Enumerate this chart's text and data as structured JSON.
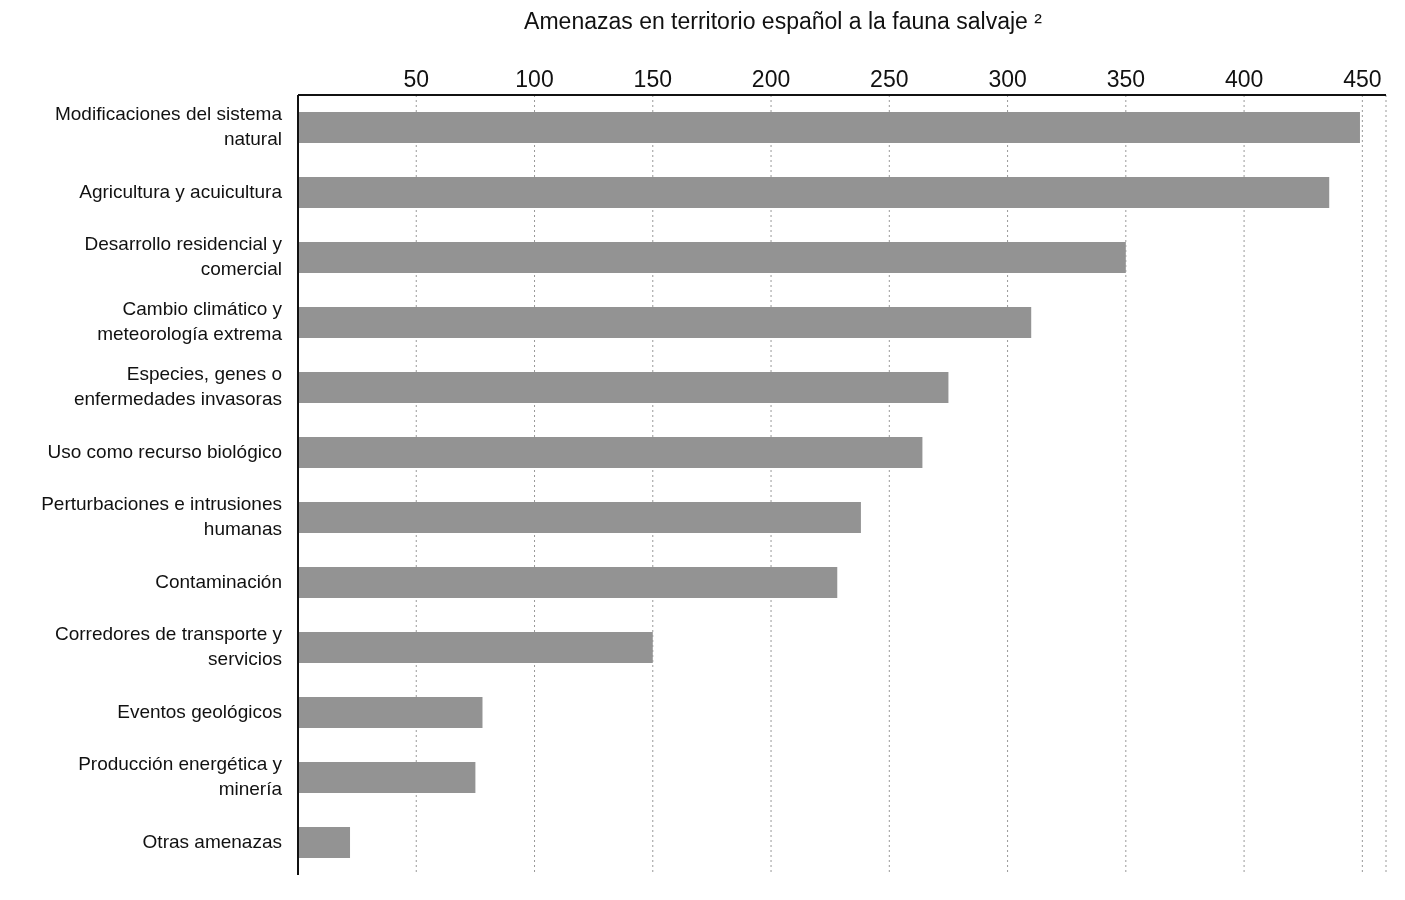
{
  "chart_data": {
    "type": "bar",
    "orientation": "horizontal",
    "title": "Amenazas en territorio español a la fauna salvaje ²",
    "categories": [
      "Modificaciones del sistema natural",
      "Agricultura y acuicultura",
      "Desarrollo residencial y comercial",
      "Cambio climático y meteorología extrema",
      "Especies, genes o enfermedades invasoras",
      "Uso como recurso biológico",
      "Perturbaciones e intrusiones humanas",
      "Contaminación",
      "Corredores de transporte y servicios",
      "Eventos geológicos",
      "Producción energética y minería",
      "Otras amenazas"
    ],
    "values": [
      449,
      436,
      350,
      310,
      275,
      264,
      238,
      228,
      150,
      78,
      75,
      22
    ],
    "color": "#939393",
    "xlim": [
      0,
      460
    ],
    "xticks": [
      50,
      100,
      150,
      200,
      250,
      300,
      350,
      400,
      450
    ],
    "grid": "x"
  }
}
